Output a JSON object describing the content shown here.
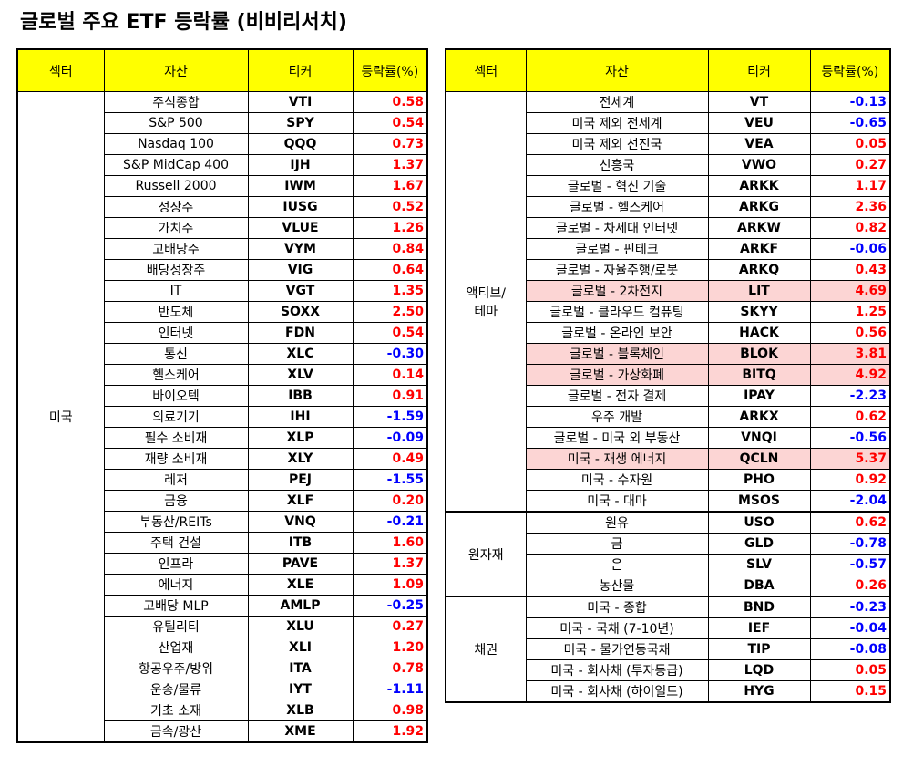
{
  "title": "글로벌 주요 ETF 등락률 (비비리서치)",
  "colors": {
    "header_bg": "#ffff00",
    "positive": "#ff0000",
    "negative": "#0000ff",
    "highlight": "#fcd5d4"
  },
  "headers": {
    "sector": "섹터",
    "asset": "자산",
    "ticker": "티커",
    "change": "등락률(%)"
  },
  "left": {
    "sector": "미국",
    "rows": [
      {
        "asset": "주식종합",
        "ticker": "VTI",
        "change": "0.58"
      },
      {
        "asset": "S&P 500",
        "ticker": "SPY",
        "change": "0.54"
      },
      {
        "asset": "Nasdaq 100",
        "ticker": "QQQ",
        "change": "0.73"
      },
      {
        "asset": "S&P MidCap 400",
        "ticker": "IJH",
        "change": "1.37"
      },
      {
        "asset": "Russell 2000",
        "ticker": "IWM",
        "change": "1.67"
      },
      {
        "asset": "성장주",
        "ticker": "IUSG",
        "change": "0.52"
      },
      {
        "asset": "가치주",
        "ticker": "VLUE",
        "change": "1.26"
      },
      {
        "asset": "고배당주",
        "ticker": "VYM",
        "change": "0.84"
      },
      {
        "asset": "배당성장주",
        "ticker": "VIG",
        "change": "0.64"
      },
      {
        "asset": "IT",
        "ticker": "VGT",
        "change": "1.35"
      },
      {
        "asset": "반도체",
        "ticker": "SOXX",
        "change": "2.50"
      },
      {
        "asset": "인터넷",
        "ticker": "FDN",
        "change": "0.54"
      },
      {
        "asset": "통신",
        "ticker": "XLC",
        "change": "-0.30"
      },
      {
        "asset": "헬스케어",
        "ticker": "XLV",
        "change": "0.14"
      },
      {
        "asset": "바이오텍",
        "ticker": "IBB",
        "change": "0.91"
      },
      {
        "asset": "의료기기",
        "ticker": "IHI",
        "change": "-1.59"
      },
      {
        "asset": "필수 소비재",
        "ticker": "XLP",
        "change": "-0.09"
      },
      {
        "asset": "재량 소비재",
        "ticker": "XLY",
        "change": "0.49"
      },
      {
        "asset": "레저",
        "ticker": "PEJ",
        "change": "-1.55"
      },
      {
        "asset": "금융",
        "ticker": "XLF",
        "change": "0.20"
      },
      {
        "asset": "부동산/REITs",
        "ticker": "VNQ",
        "change": "-0.21"
      },
      {
        "asset": "주택 건설",
        "ticker": "ITB",
        "change": "1.60"
      },
      {
        "asset": "인프라",
        "ticker": "PAVE",
        "change": "1.37"
      },
      {
        "asset": "에너지",
        "ticker": "XLE",
        "change": "1.09"
      },
      {
        "asset": "고배당 MLP",
        "ticker": "AMLP",
        "change": "-0.25"
      },
      {
        "asset": "유틸리티",
        "ticker": "XLU",
        "change": "0.27"
      },
      {
        "asset": "산업재",
        "ticker": "XLI",
        "change": "1.20"
      },
      {
        "asset": "항공우주/방위",
        "ticker": "ITA",
        "change": "0.78"
      },
      {
        "asset": "운송/물류",
        "ticker": "IYT",
        "change": "-1.11"
      },
      {
        "asset": "기초 소재",
        "ticker": "XLB",
        "change": "0.98"
      },
      {
        "asset": "금속/광산",
        "ticker": "XME",
        "change": "1.92"
      }
    ]
  },
  "right": {
    "groups": [
      {
        "sector": "액티브/\n테마",
        "rows": [
          {
            "asset": "전세계",
            "ticker": "VT",
            "change": "-0.13",
            "hl": false
          },
          {
            "asset": "미국 제외 전세계",
            "ticker": "VEU",
            "change": "-0.65",
            "hl": false
          },
          {
            "asset": "미국 제외 선진국",
            "ticker": "VEA",
            "change": "0.05",
            "hl": false
          },
          {
            "asset": "신흥국",
            "ticker": "VWO",
            "change": "0.27",
            "hl": false
          },
          {
            "asset": "글로벌 - 혁신 기술",
            "ticker": "ARKK",
            "change": "1.17",
            "hl": false
          },
          {
            "asset": "글로벌 - 헬스케어",
            "ticker": "ARKG",
            "change": "2.36",
            "hl": false
          },
          {
            "asset": "글로벌 - 차세대 인터넷",
            "ticker": "ARKW",
            "change": "0.82",
            "hl": false
          },
          {
            "asset": "글로벌 - 핀테크",
            "ticker": "ARKF",
            "change": "-0.06",
            "hl": false
          },
          {
            "asset": "글로벌 - 자율주행/로봇",
            "ticker": "ARKQ",
            "change": "0.43",
            "hl": false
          },
          {
            "asset": "글로벌 - 2차전지",
            "ticker": "LIT",
            "change": "4.69",
            "hl": true
          },
          {
            "asset": "글로벌 - 클라우드 컴퓨팅",
            "ticker": "SKYY",
            "change": "1.25",
            "hl": false
          },
          {
            "asset": "글로벌 - 온라인 보안",
            "ticker": "HACK",
            "change": "0.56",
            "hl": false
          },
          {
            "asset": "글로벌 - 블록체인",
            "ticker": "BLOK",
            "change": "3.81",
            "hl": true
          },
          {
            "asset": "글로벌 - 가상화폐",
            "ticker": "BITQ",
            "change": "4.92",
            "hl": true
          },
          {
            "asset": "글로벌 - 전자 결제",
            "ticker": "IPAY",
            "change": "-2.23",
            "hl": false
          },
          {
            "asset": "우주 개발",
            "ticker": "ARKX",
            "change": "0.62",
            "hl": false
          },
          {
            "asset": "글로벌 - 미국 외 부동산",
            "ticker": "VNQI",
            "change": "-0.56",
            "hl": false
          },
          {
            "asset": "미국 - 재생 에너지",
            "ticker": "QCLN",
            "change": "5.37",
            "hl": true
          },
          {
            "asset": "미국 - 수자원",
            "ticker": "PHO",
            "change": "0.92",
            "hl": false
          },
          {
            "asset": "미국 - 대마",
            "ticker": "MSOS",
            "change": "-2.04",
            "hl": false
          }
        ]
      },
      {
        "sector": "원자재",
        "rows": [
          {
            "asset": "원유",
            "ticker": "USO",
            "change": "0.62",
            "hl": false
          },
          {
            "asset": "금",
            "ticker": "GLD",
            "change": "-0.78",
            "hl": false
          },
          {
            "asset": "은",
            "ticker": "SLV",
            "change": "-0.57",
            "hl": false
          },
          {
            "asset": "농산물",
            "ticker": "DBA",
            "change": "0.26",
            "hl": false
          }
        ]
      },
      {
        "sector": "채권",
        "rows": [
          {
            "asset": "미국 - 종합",
            "ticker": "BND",
            "change": "-0.23",
            "hl": false
          },
          {
            "asset": "미국 - 국채 (7-10년)",
            "ticker": "IEF",
            "change": "-0.04",
            "hl": false
          },
          {
            "asset": "미국 - 물가연동국채",
            "ticker": "TIP",
            "change": "-0.08",
            "hl": false
          },
          {
            "asset": "미국 - 회사채 (투자등급)",
            "ticker": "LQD",
            "change": "0.05",
            "hl": false
          },
          {
            "asset": "미국 - 회사채 (하이일드)",
            "ticker": "HYG",
            "change": "0.15",
            "hl": false
          }
        ]
      }
    ]
  }
}
